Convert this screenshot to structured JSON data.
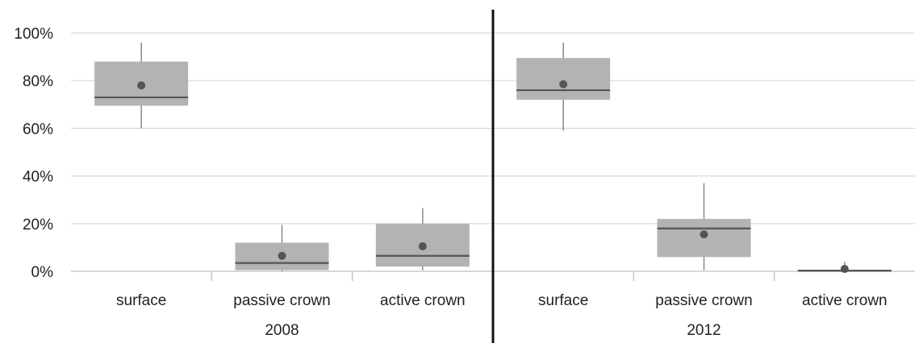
{
  "chart_data": {
    "type": "box",
    "y_ticks": [
      "0%",
      "20%",
      "40%",
      "60%",
      "80%",
      "100%"
    ],
    "ylim": [
      0,
      100
    ],
    "grid": true,
    "groups": [
      {
        "label": "2008",
        "boxes": [
          {
            "category": "surface",
            "min": 60,
            "q1": 69.5,
            "median": 73,
            "q3": 88,
            "max": 96,
            "mean": 78
          },
          {
            "category": "passive crown",
            "min": 0,
            "q1": 0.5,
            "median": 3.5,
            "q3": 12,
            "max": 19.5,
            "mean": 6.5
          },
          {
            "category": "active crown",
            "min": 0.5,
            "q1": 2,
            "median": 6.5,
            "q3": 20,
            "max": 26.5,
            "mean": 10.5
          }
        ]
      },
      {
        "label": "2012",
        "boxes": [
          {
            "category": "surface",
            "min": 59,
            "q1": 72,
            "median": 76,
            "q3": 89.5,
            "max": 96,
            "mean": 78.5
          },
          {
            "category": "passive crown",
            "min": 0.5,
            "q1": 6,
            "median": 18,
            "q3": 22,
            "max": 37,
            "mean": 15.5
          },
          {
            "category": "active crown",
            "min": 0,
            "q1": 0,
            "median": 0.3,
            "q3": 0.5,
            "max": 4,
            "mean": 1
          }
        ]
      }
    ],
    "colors": {
      "box": "#b3b3b3",
      "median": "#555555",
      "whisker": "#888888",
      "mean": "#555555",
      "grid": "#d9d9d9",
      "axis": "#c8c8c8",
      "divider": "#111111"
    }
  }
}
